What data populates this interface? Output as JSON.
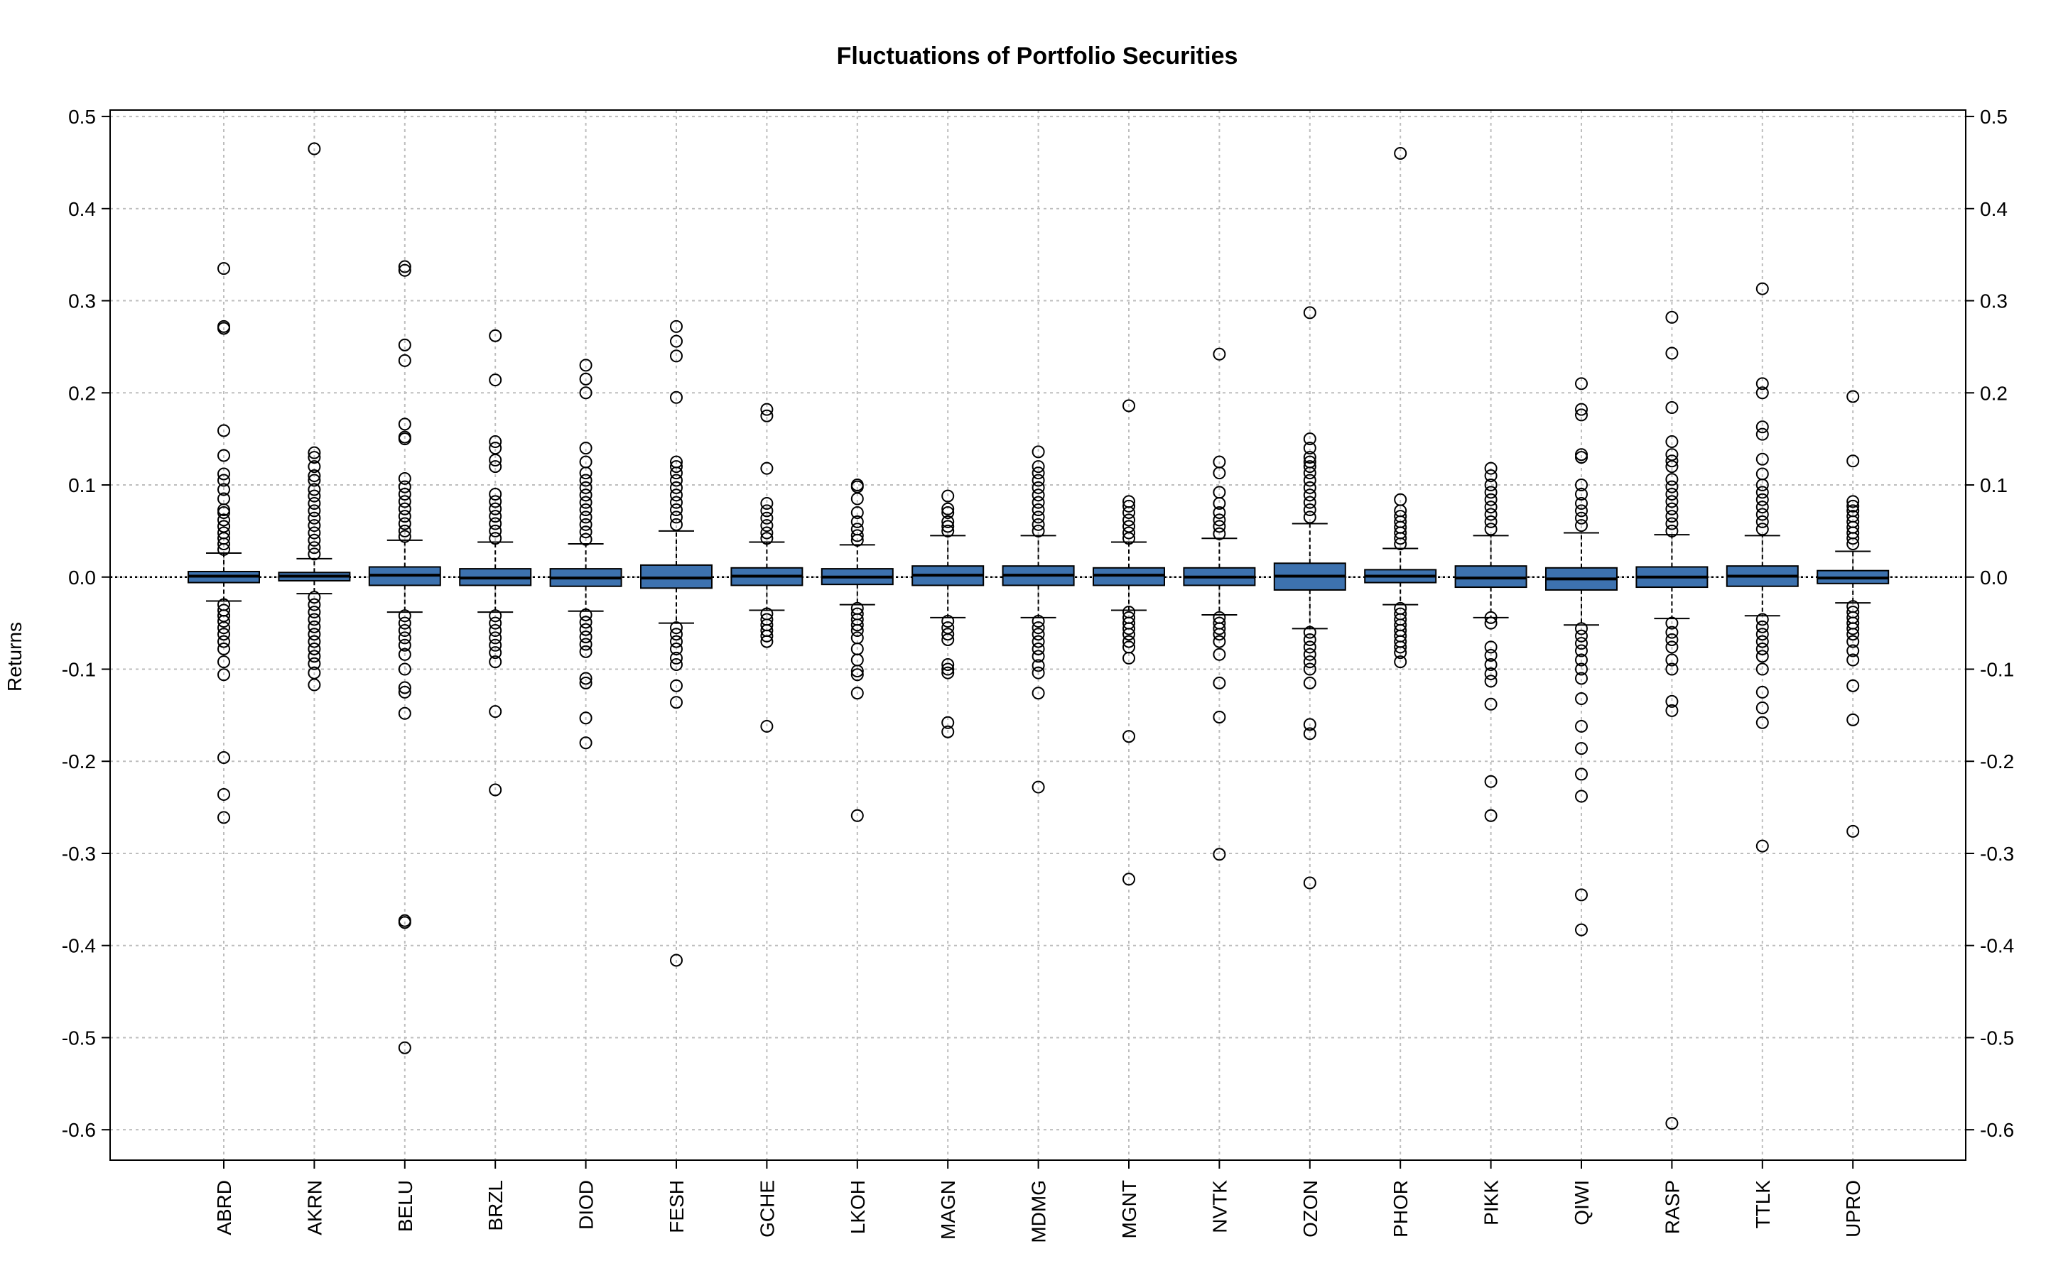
{
  "chart_data": {
    "type": "box",
    "title": "Fluctuations of Portfolio Securities",
    "xlabel": "",
    "ylabel": "Returns",
    "ylim": [
      -0.633,
      0.507
    ],
    "yticks": [
      0.5,
      0.4,
      0.3,
      0.2,
      0.1,
      0.0,
      -0.1,
      -0.2,
      -0.3,
      -0.4,
      -0.5,
      -0.6
    ],
    "ytick_labels": [
      "0.5",
      "0.4",
      "0.3",
      "0.2",
      "0.1",
      "0.0",
      "-0.1",
      "-0.2",
      "-0.3",
      "-0.4",
      "-0.5",
      "-0.6"
    ],
    "grid": true,
    "box_color": "#3D72AF",
    "categories": [
      "ABRD",
      "AKRN",
      "BELU",
      "BRZL",
      "DIOD",
      "FESH",
      "GCHE",
      "LKOH",
      "MAGN",
      "MDMG",
      "MGNT",
      "NVTK",
      "OZON",
      "PHOR",
      "PIKK",
      "QIWI",
      "RASP",
      "TTLK",
      "UPRO"
    ],
    "boxes": [
      {
        "q1": -0.006,
        "median": 0.001,
        "q3": 0.006,
        "whisker_low": -0.026,
        "whisker_high": 0.026,
        "outliers": [
          0.335,
          0.272,
          0.27,
          0.159,
          0.132,
          0.112,
          0.105,
          0.095,
          0.085,
          0.073,
          0.07,
          0.062,
          0.055,
          0.048,
          0.042,
          0.036,
          0.03,
          -0.03,
          -0.036,
          -0.042,
          -0.048,
          -0.055,
          -0.062,
          -0.07,
          -0.078,
          -0.092,
          -0.106,
          -0.196,
          -0.236,
          -0.261
        ]
      },
      {
        "q1": -0.004,
        "median": 0.001,
        "q3": 0.005,
        "whisker_low": -0.018,
        "whisker_high": 0.02,
        "outliers": [
          0.465,
          0.135,
          0.13,
          0.12,
          0.11,
          0.105,
          0.095,
          0.088,
          0.08,
          0.072,
          0.064,
          0.056,
          0.048,
          0.04,
          0.032,
          0.025,
          -0.022,
          -0.03,
          -0.038,
          -0.046,
          -0.054,
          -0.062,
          -0.07,
          -0.078,
          -0.086,
          -0.094,
          -0.104,
          -0.117
        ]
      },
      {
        "q1": -0.009,
        "median": 0.002,
        "q3": 0.011,
        "whisker_low": -0.038,
        "whisker_high": 0.04,
        "outliers": [
          0.337,
          0.333,
          0.252,
          0.235,
          0.166,
          0.152,
          0.15,
          0.107,
          0.098,
          0.09,
          0.082,
          0.074,
          0.066,
          0.058,
          0.05,
          0.044,
          -0.042,
          -0.05,
          -0.058,
          -0.066,
          -0.074,
          -0.084,
          -0.1,
          -0.12,
          -0.125,
          -0.148,
          -0.373,
          -0.375,
          -0.511
        ]
      },
      {
        "q1": -0.009,
        "median": -0.001,
        "q3": 0.009,
        "whisker_low": -0.038,
        "whisker_high": 0.038,
        "outliers": [
          0.262,
          0.214,
          0.147,
          0.14,
          0.127,
          0.12,
          0.09,
          0.082,
          0.074,
          0.066,
          0.058,
          0.05,
          0.042,
          -0.042,
          -0.05,
          -0.058,
          -0.066,
          -0.074,
          -0.082,
          -0.092,
          -0.146,
          -0.231
        ]
      },
      {
        "q1": -0.01,
        "median": -0.001,
        "q3": 0.009,
        "whisker_low": -0.037,
        "whisker_high": 0.036,
        "outliers": [
          0.23,
          0.215,
          0.2,
          0.14,
          0.125,
          0.113,
          0.105,
          0.097,
          0.089,
          0.081,
          0.073,
          0.065,
          0.057,
          0.049,
          0.041,
          -0.041,
          -0.049,
          -0.057,
          -0.065,
          -0.073,
          -0.081,
          -0.11,
          -0.115,
          -0.153,
          -0.18
        ]
      },
      {
        "q1": -0.012,
        "median": -0.001,
        "q3": 0.013,
        "whisker_low": -0.05,
        "whisker_high": 0.05,
        "outliers": [
          0.272,
          0.256,
          0.24,
          0.195,
          0.125,
          0.12,
          0.113,
          0.105,
          0.097,
          0.089,
          0.081,
          0.073,
          0.065,
          0.057,
          -0.055,
          -0.062,
          -0.07,
          -0.078,
          -0.088,
          -0.095,
          -0.118,
          -0.136,
          -0.416
        ]
      },
      {
        "q1": -0.009,
        "median": 0.001,
        "q3": 0.01,
        "whisker_low": -0.036,
        "whisker_high": 0.038,
        "outliers": [
          0.182,
          0.175,
          0.118,
          0.08,
          0.072,
          0.064,
          0.056,
          0.048,
          0.042,
          -0.04,
          -0.046,
          -0.052,
          -0.058,
          -0.064,
          -0.07,
          -0.162
        ]
      },
      {
        "q1": -0.008,
        "median": 0.0,
        "q3": 0.009,
        "whisker_low": -0.03,
        "whisker_high": 0.035,
        "outliers": [
          0.1,
          0.098,
          0.085,
          0.07,
          0.06,
          0.052,
          0.045,
          0.04,
          -0.034,
          -0.04,
          -0.046,
          -0.052,
          -0.058,
          -0.066,
          -0.078,
          -0.09,
          -0.102,
          -0.106,
          -0.126,
          -0.259
        ]
      },
      {
        "q1": -0.009,
        "median": 0.002,
        "q3": 0.012,
        "whisker_low": -0.044,
        "whisker_high": 0.045,
        "outliers": [
          0.088,
          0.074,
          0.07,
          0.06,
          0.055,
          0.05,
          -0.048,
          -0.055,
          -0.062,
          -0.068,
          -0.095,
          -0.1,
          -0.104,
          -0.158,
          -0.168
        ]
      },
      {
        "q1": -0.009,
        "median": 0.002,
        "q3": 0.012,
        "whisker_low": -0.044,
        "whisker_high": 0.045,
        "outliers": [
          0.136,
          0.12,
          0.113,
          0.105,
          0.097,
          0.089,
          0.081,
          0.073,
          0.065,
          0.057,
          0.05,
          -0.048,
          -0.055,
          -0.062,
          -0.07,
          -0.078,
          -0.086,
          -0.096,
          -0.104,
          -0.126,
          -0.228
        ]
      },
      {
        "q1": -0.009,
        "median": 0.002,
        "q3": 0.01,
        "whisker_low": -0.036,
        "whisker_high": 0.038,
        "outliers": [
          0.186,
          0.082,
          0.077,
          0.07,
          0.062,
          0.055,
          0.048,
          0.042,
          -0.038,
          -0.044,
          -0.05,
          -0.056,
          -0.062,
          -0.07,
          -0.076,
          -0.088,
          -0.173,
          -0.328
        ]
      },
      {
        "q1": -0.009,
        "median": 0.0,
        "q3": 0.01,
        "whisker_low": -0.041,
        "whisker_high": 0.042,
        "outliers": [
          0.242,
          0.125,
          0.113,
          0.092,
          0.08,
          0.07,
          0.062,
          0.055,
          0.047,
          -0.044,
          -0.05,
          -0.056,
          -0.062,
          -0.07,
          -0.084,
          -0.115,
          -0.152,
          -0.301
        ]
      },
      {
        "q1": -0.014,
        "median": 0.001,
        "q3": 0.015,
        "whisker_low": -0.056,
        "whisker_high": 0.058,
        "outliers": [
          0.287,
          0.15,
          0.14,
          0.13,
          0.125,
          0.12,
          0.113,
          0.105,
          0.097,
          0.089,
          0.081,
          0.073,
          0.065,
          -0.06,
          -0.068,
          -0.076,
          -0.084,
          -0.092,
          -0.1,
          -0.115,
          -0.16,
          -0.17,
          -0.332
        ]
      },
      {
        "q1": -0.006,
        "median": 0.001,
        "q3": 0.008,
        "whisker_low": -0.03,
        "whisker_high": 0.031,
        "outliers": [
          0.46,
          0.084,
          0.072,
          0.066,
          0.06,
          0.054,
          0.048,
          0.042,
          0.036,
          -0.034,
          -0.04,
          -0.046,
          -0.052,
          -0.058,
          -0.064,
          -0.07,
          -0.076,
          -0.082,
          -0.092
        ]
      },
      {
        "q1": -0.011,
        "median": -0.001,
        "q3": 0.012,
        "whisker_low": -0.044,
        "whisker_high": 0.045,
        "outliers": [
          0.118,
          0.11,
          0.1,
          0.092,
          0.084,
          0.076,
          0.068,
          0.06,
          0.052,
          -0.044,
          -0.05,
          -0.076,
          -0.085,
          -0.095,
          -0.105,
          -0.113,
          -0.138,
          -0.222,
          -0.259
        ]
      },
      {
        "q1": -0.014,
        "median": -0.002,
        "q3": 0.01,
        "whisker_low": -0.052,
        "whisker_high": 0.048,
        "outliers": [
          0.21,
          0.182,
          0.176,
          0.133,
          0.13,
          0.1,
          0.09,
          0.08,
          0.072,
          0.064,
          0.056,
          -0.056,
          -0.064,
          -0.072,
          -0.08,
          -0.09,
          -0.1,
          -0.11,
          -0.132,
          -0.162,
          -0.186,
          -0.214,
          -0.238,
          -0.345,
          -0.383
        ]
      },
      {
        "q1": -0.011,
        "median": 0.0,
        "q3": 0.011,
        "whisker_low": -0.045,
        "whisker_high": 0.046,
        "outliers": [
          0.282,
          0.243,
          0.184,
          0.147,
          0.133,
          0.126,
          0.12,
          0.106,
          0.098,
          0.09,
          0.082,
          0.074,
          0.066,
          0.058,
          0.05,
          -0.05,
          -0.06,
          -0.068,
          -0.076,
          -0.09,
          -0.1,
          -0.135,
          -0.145,
          -0.593
        ]
      },
      {
        "q1": -0.01,
        "median": 0.001,
        "q3": 0.012,
        "whisker_low": -0.042,
        "whisker_high": 0.045,
        "outliers": [
          0.313,
          0.21,
          0.2,
          0.163,
          0.155,
          0.128,
          0.112,
          0.1,
          0.092,
          0.084,
          0.076,
          0.068,
          0.06,
          0.052,
          -0.046,
          -0.054,
          -0.062,
          -0.07,
          -0.078,
          -0.086,
          -0.1,
          -0.125,
          -0.142,
          -0.158,
          -0.292
        ]
      },
      {
        "q1": -0.007,
        "median": -0.001,
        "q3": 0.007,
        "whisker_low": -0.028,
        "whisker_high": 0.028,
        "outliers": [
          0.196,
          0.126,
          0.082,
          0.077,
          0.072,
          0.066,
          0.06,
          0.054,
          0.048,
          0.042,
          0.036,
          -0.032,
          -0.038,
          -0.044,
          -0.05,
          -0.056,
          -0.062,
          -0.07,
          -0.08,
          -0.09,
          -0.118,
          -0.155,
          -0.276
        ]
      }
    ]
  }
}
